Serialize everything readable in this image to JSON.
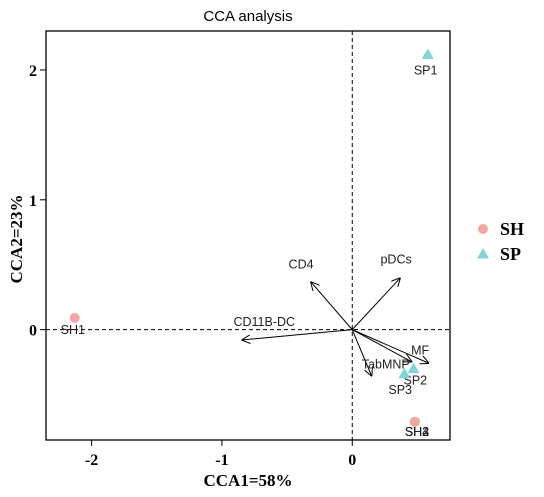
{
  "chart_data": {
    "type": "scatter",
    "title": "CCA analysis",
    "xlabel": "CCA1=58%",
    "ylabel": "CCA2=23%",
    "xlim": [
      -2.35,
      0.75
    ],
    "ylim": [
      -0.85,
      2.3
    ],
    "xticks": [
      -2,
      -1,
      0
    ],
    "yticks": [
      0,
      1,
      2
    ],
    "reference_lines": {
      "x": 0,
      "y": 0,
      "style": "dashed"
    },
    "legend": {
      "placement": "right",
      "entries": [
        "SH",
        "SP"
      ]
    },
    "colors": {
      "SH": "#f4a6a0",
      "SP": "#7fd6d9"
    },
    "series": [
      {
        "name": "SH",
        "marker": "circle",
        "points": [
          {
            "label": "SH1",
            "x": -2.13,
            "y": 0.09
          },
          {
            "label": "SH2",
            "x": 0.48,
            "y": -0.71
          },
          {
            "label": "SH3",
            "x": 0.48,
            "y": -0.71
          },
          {
            "label": "SH4",
            "x": 0.48,
            "y": -0.71
          }
        ]
      },
      {
        "name": "SP",
        "marker": "triangle",
        "points": [
          {
            "label": "SP1",
            "x": 0.58,
            "y": 2.12
          },
          {
            "label": "SP2",
            "x": 0.47,
            "y": -0.3
          },
          {
            "label": "SP3",
            "x": 0.4,
            "y": -0.34
          }
        ]
      }
    ],
    "arrows": [
      {
        "label": "CD4",
        "x": -0.32,
        "y": 0.37
      },
      {
        "label": "pDCs",
        "x": 0.37,
        "y": 0.4
      },
      {
        "label": "CD11B-DC",
        "x": -0.85,
        "y": -0.08
      },
      {
        "label": "MF",
        "x": 0.59,
        "y": -0.26
      },
      {
        "label": "TabMNP",
        "x": 0.15,
        "y": -0.36
      },
      {
        "label": "",
        "x": 0.46,
        "y": -0.25
      }
    ]
  }
}
